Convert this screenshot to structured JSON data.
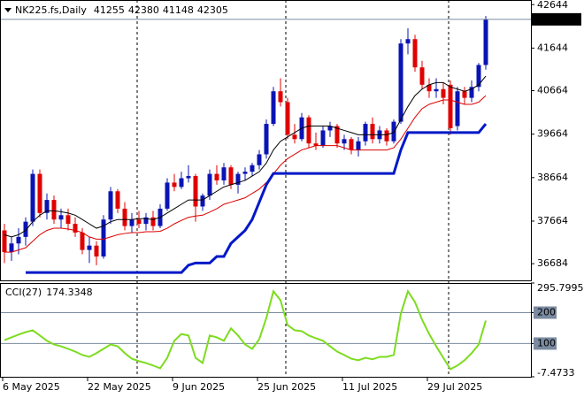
{
  "chart_data": [
    {
      "type": "candlestick",
      "title": "NK225.fs,Daily",
      "categories": [
        "6 May 2025",
        null,
        null,
        null,
        null,
        null,
        null,
        null,
        null,
        null,
        null,
        null,
        "22 May 2025",
        null,
        null,
        null,
        null,
        null,
        null,
        null,
        null,
        null,
        null,
        null,
        "9 Jun 2025",
        null,
        null,
        null,
        null,
        null,
        null,
        null,
        null,
        null,
        null,
        null,
        "25 Jun 2025",
        null,
        null,
        null,
        null,
        null,
        null,
        null,
        null,
        null,
        null,
        null,
        "11 Jul 2025",
        null,
        null,
        null,
        null,
        null,
        null,
        null,
        null,
        null,
        null,
        null,
        "29 Jul 2025",
        null,
        null,
        null,
        null,
        null,
        null,
        null,
        null
      ],
      "open": [
        37450,
        36950,
        37150,
        37300,
        37650,
        38750,
        37850,
        38150,
        37700,
        37800,
        37600,
        37400,
        37000,
        37100,
        36850,
        37700,
        38350,
        37950,
        37550,
        37700,
        37600,
        37750,
        37550,
        37950,
        38550,
        38450,
        38650,
        38700,
        38000,
        38250,
        38750,
        38600,
        38900,
        38500,
        38750,
        38800,
        38950,
        39200,
        39900,
        40650,
        40400,
        39650,
        39550,
        40050,
        39450,
        39400,
        39750,
        39850,
        39450,
        39550,
        39300,
        39500,
        39900,
        39550,
        39750,
        39500,
        39950,
        41750,
        41850,
        41200,
        40800,
        40650,
        40700,
        40800,
        39850,
        40650,
        40500,
        40750,
        41255
      ],
      "high": [
        37600,
        37300,
        37500,
        37750,
        38850,
        38850,
        38300,
        38250,
        37950,
        37950,
        37750,
        37500,
        37300,
        37200,
        37800,
        38450,
        38400,
        38100,
        37850,
        37900,
        37850,
        37900,
        38050,
        38650,
        38750,
        38800,
        38950,
        38750,
        38300,
        38850,
        38950,
        39000,
        38950,
        38800,
        38900,
        39000,
        39300,
        40000,
        40750,
        40950,
        40500,
        39900,
        40150,
        40100,
        39700,
        39850,
        39950,
        39900,
        39650,
        39600,
        39600,
        39950,
        40050,
        39850,
        39800,
        40000,
        41850,
        42100,
        41950,
        41350,
        40950,
        40950,
        40850,
        40900,
        40750,
        40750,
        40900,
        41300,
        42380
      ],
      "low": [
        36700,
        36750,
        36900,
        37100,
        37550,
        37750,
        37700,
        37600,
        37500,
        37450,
        37300,
        36900,
        36700,
        36650,
        36800,
        37600,
        37850,
        37450,
        37400,
        37500,
        37450,
        37450,
        37500,
        37900,
        38350,
        38400,
        38550,
        37650,
        37900,
        38150,
        38500,
        38500,
        38400,
        38300,
        38600,
        38700,
        38850,
        39100,
        39850,
        40300,
        39550,
        39450,
        39500,
        39350,
        39300,
        39350,
        39600,
        39350,
        39300,
        39200,
        39150,
        39400,
        39450,
        39450,
        39400,
        39450,
        39900,
        41500,
        41100,
        40700,
        40500,
        40500,
        40350,
        39650,
        39750,
        40350,
        40400,
        40650,
        41148
      ],
      "close": [
        36950,
        37150,
        37300,
        37650,
        38750,
        37850,
        38150,
        37700,
        37800,
        37600,
        37400,
        37000,
        37100,
        36850,
        37700,
        38350,
        37950,
        37550,
        37700,
        37600,
        37750,
        37550,
        37950,
        38550,
        38450,
        38650,
        38700,
        38000,
        38250,
        38750,
        38600,
        38900,
        38500,
        38750,
        38800,
        38950,
        39200,
        39900,
        40650,
        40400,
        39650,
        39550,
        40050,
        39450,
        39400,
        39750,
        39850,
        39450,
        39550,
        39300,
        39500,
        39900,
        39550,
        39750,
        39500,
        39950,
        41750,
        41850,
        41200,
        40800,
        40650,
        40700,
        40500,
        39800,
        40650,
        40500,
        40750,
        41255,
        42305
      ],
      "up_color": "#0a14b4",
      "down_color": "#e00000",
      "overlays": [
        {
          "color": "#000000",
          "values": [
            37350,
            37300,
            37350,
            37450,
            37650,
            37800,
            37900,
            37900,
            37880,
            37850,
            37800,
            37700,
            37600,
            37500,
            37550,
            37650,
            37700,
            37700,
            37700,
            37720,
            37720,
            37700,
            37750,
            37850,
            37950,
            38050,
            38150,
            38150,
            38150,
            38250,
            38350,
            38450,
            38500,
            38550,
            38600,
            38700,
            38800,
            39000,
            39300,
            39500,
            39600,
            39700,
            39800,
            39850,
            39850,
            39850,
            39850,
            39800,
            39750,
            39700,
            39650,
            39650,
            39650,
            39650,
            39650,
            39700,
            40000,
            40300,
            40550,
            40700,
            40800,
            40850,
            40850,
            40750,
            40700,
            40650,
            40700,
            40800,
            41000
          ]
        },
        {
          "color": "#dd0000",
          "values": [
            36950,
            36950,
            37000,
            37050,
            37200,
            37350,
            37450,
            37500,
            37500,
            37480,
            37450,
            37400,
            37300,
            37250,
            37250,
            37300,
            37350,
            37380,
            37400,
            37400,
            37420,
            37420,
            37430,
            37500,
            37600,
            37680,
            37750,
            37780,
            37800,
            37870,
            37950,
            38050,
            38100,
            38150,
            38200,
            38300,
            38400,
            38550,
            38750,
            38950,
            39100,
            39200,
            39300,
            39350,
            39400,
            39400,
            39400,
            39400,
            39350,
            39300,
            39300,
            39300,
            39300,
            39300,
            39300,
            39350,
            39550,
            39800,
            40050,
            40250,
            40350,
            40400,
            40450,
            40450,
            40400,
            40350,
            40350,
            40400,
            40550
          ]
        },
        {
          "color": "#0018c8",
          "values": [
            null,
            null,
            null,
            36480,
            36480,
            36480,
            36480,
            36480,
            36480,
            36480,
            36480,
            36480,
            36480,
            36480,
            36480,
            36480,
            36480,
            36480,
            36480,
            36480,
            36480,
            36480,
            36480,
            36480,
            36480,
            36480,
            36650,
            36700,
            36700,
            36700,
            36850,
            36850,
            37150,
            37300,
            37450,
            37700,
            38100,
            38500,
            38760,
            38760,
            38760,
            38760,
            38760,
            38760,
            38760,
            38760,
            38760,
            38760,
            38760,
            38760,
            38760,
            38760,
            38760,
            38760,
            38760,
            38760,
            39300,
            39700,
            39700,
            39700,
            39700,
            39700,
            39700,
            39700,
            39700,
            39700,
            39700,
            39700,
            39900
          ]
        }
      ],
      "ylim": [
        36280,
        42750
      ],
      "yticks": [
        42644,
        41644,
        40664,
        39664,
        38664,
        37664,
        36684
      ]
    },
    {
      "type": "line",
      "title": "CCI(27)",
      "series": [
        {
          "color": "#7ddc1f",
          "values": [
            111,
            120,
            129,
            137,
            143,
            126,
            109,
            97,
            91,
            83,
            74,
            63,
            57,
            69,
            83,
            97,
            91,
            69,
            51,
            43,
            37,
            29,
            20,
            54,
            109,
            131,
            126,
            54,
            37,
            126,
            120,
            109,
            149,
            126,
            97,
            83,
            114,
            183,
            269,
            240,
            160,
            143,
            140,
            126,
            117,
            109,
            91,
            74,
            63,
            51,
            46,
            54,
            49,
            57,
            57,
            63,
            197,
            269,
            234,
            177,
            131,
            91,
            54,
            17,
            29,
            46,
            69,
            97,
            174.3348
          ]
        }
      ],
      "ylim": [
        -7.4733,
        295.7995
      ],
      "yticks": [
        295.7995,
        200,
        100,
        -7.4733
      ]
    }
  ]
}
